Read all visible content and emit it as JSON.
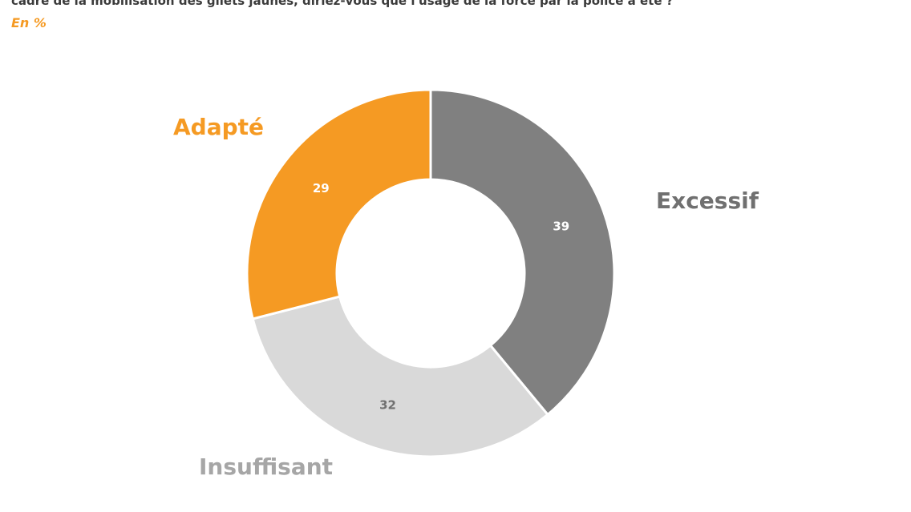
{
  "header": {
    "question": "cadre de la mobilisation des gilets jaunes, diriez-vous que l'usage de la force par la police a été ?",
    "unit": "En %"
  },
  "colors": {
    "accent": "#f59a23",
    "excessif": "#808080",
    "insuffisant": "#d9d9d9",
    "adapte": "#f59a23",
    "label_excessif": "#707070",
    "label_insuffisant": "#a6a6a6",
    "value_text_dark": "#ffffff",
    "value_text_light": "#707070"
  },
  "chart_data": {
    "type": "pie",
    "variant": "donut",
    "unit": "En %",
    "slices": [
      {
        "label": "Excessif",
        "value": 39,
        "color": "#808080"
      },
      {
        "label": "Insuffisant",
        "value": 32,
        "color": "#d9d9d9"
      },
      {
        "label": "Adapté",
        "value": 29,
        "color": "#f59a23"
      }
    ]
  }
}
